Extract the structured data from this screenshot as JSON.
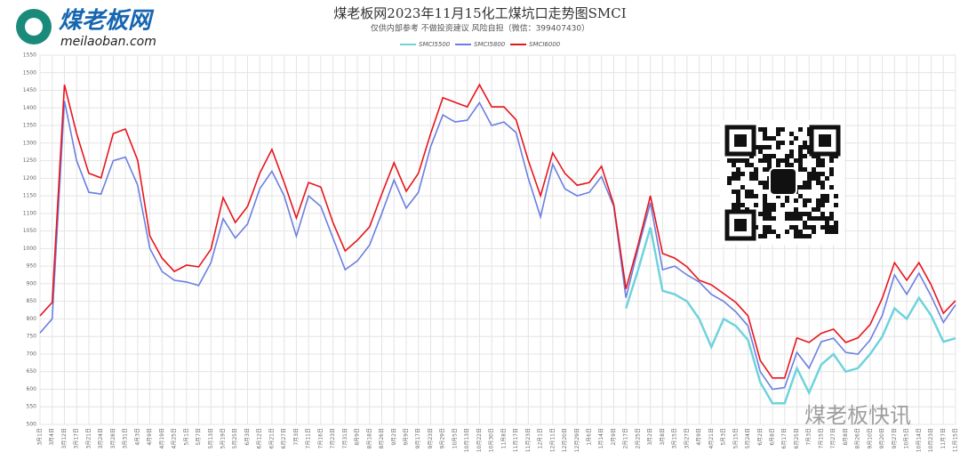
{
  "logo": {
    "name": "煤老板网",
    "site": "meilaoban.com"
  },
  "watermark": "煤老板快讯",
  "chart_data": {
    "type": "line",
    "title": "煤老板网2023年11月15化工煤坑口走势图SMCI",
    "subtitle": "仅供内部参考 不做投资建议 风险自担（微信：399407430）",
    "categories": [
      "3月1日",
      "3月4日",
      "3月12日",
      "3月17日",
      "3月21日",
      "3月24日",
      "3月28日",
      "3月31日",
      "4月3日",
      "4月9日",
      "4月19日",
      "4月25日",
      "5月1日",
      "5月7日",
      "5月13日",
      "5月19日",
      "5月25日",
      "6月3日",
      "6月12日",
      "6月21日",
      "6月27日",
      "7月3日",
      "7月11日",
      "7月16日",
      "7月23日",
      "7月31日",
      "8月9日",
      "8月18日",
      "8月26日",
      "9月2日",
      "9月9日",
      "9月17日",
      "9月23日",
      "9月29日",
      "10月5日",
      "10月13日",
      "10月22日",
      "10月30日",
      "11月8日",
      "11月17日",
      "11月23日",
      "12月1日",
      "12月11日",
      "12月20日",
      "12月29日",
      "1月6日",
      "1月14日",
      "2月9日",
      "2月17日",
      "2月25日",
      "3月2日",
      "3月8日",
      "3月15日",
      "3月27日",
      "4月9日",
      "4月21日",
      "5月3日",
      "5月15日",
      "5月24日",
      "6月2日",
      "6月8日",
      "6月17日",
      "6月25日",
      "7月3日",
      "7月15日",
      "7月27日",
      "8月8日",
      "8月26日",
      "9月10日",
      "9月20日",
      "9月27日",
      "10月5日",
      "10月14日",
      "10月23日",
      "11月7日",
      "11月15日"
    ],
    "series": [
      {
        "name": "SMCI5500",
        "color": "#6fd3dc",
        "values": [
          null,
          null,
          null,
          null,
          null,
          null,
          null,
          null,
          null,
          null,
          null,
          null,
          null,
          null,
          null,
          null,
          null,
          null,
          null,
          null,
          null,
          null,
          null,
          null,
          null,
          null,
          null,
          null,
          null,
          null,
          null,
          null,
          null,
          null,
          null,
          null,
          null,
          null,
          null,
          null,
          null,
          null,
          null,
          null,
          null,
          null,
          null,
          null,
          830,
          940,
          1060,
          880,
          870,
          850,
          800,
          720,
          800,
          780,
          740,
          620,
          560,
          560,
          660,
          590,
          670,
          700,
          650,
          660,
          700,
          750,
          830,
          800,
          860,
          810,
          735,
          745
        ]
      },
      {
        "name": "SMCI5800",
        "color": "#6b7fe0",
        "values": [
          760,
          800,
          1420,
          1250,
          1160,
          1155,
          1250,
          1260,
          1180,
          1000,
          935,
          910,
          905,
          895,
          960,
          1085,
          1030,
          1070,
          1170,
          1220,
          1150,
          1035,
          1150,
          1120,
          1030,
          940,
          965,
          1010,
          1100,
          1195,
          1115,
          1160,
          1290,
          1380,
          1360,
          1365,
          1415,
          1350,
          1360,
          1330,
          1200,
          1090,
          1240,
          1170,
          1150,
          1160,
          1205,
          1120,
          860,
          1000,
          1130,
          940,
          950,
          925,
          905,
          870,
          850,
          820,
          780,
          650,
          600,
          605,
          705,
          660,
          735,
          745,
          705,
          700,
          740,
          810,
          925,
          870,
          930,
          865,
          790,
          840
        ]
      },
      {
        "name": "SMCI6000",
        "color": "#e8141c",
        "values": [
          809,
          847,
          1466,
          1327,
          1214,
          1201,
          1327,
          1340,
          1251,
          1036,
          973,
          935,
          953,
          948,
          998,
          1145,
          1074,
          1120,
          1214,
          1282,
          1188,
          1087,
          1188,
          1175,
          1074,
          993,
          1024,
          1062,
          1155,
          1244,
          1163,
          1214,
          1327,
          1429,
          1416,
          1403,
          1466,
          1403,
          1403,
          1366,
          1251,
          1150,
          1272,
          1214,
          1180,
          1188,
          1234,
          1125,
          885,
          1011,
          1150,
          986,
          973,
          948,
          910,
          897,
          872,
          847,
          809,
          682,
          632,
          632,
          746,
          733,
          759,
          771,
          733,
          746,
          784,
          859,
          960,
          910,
          960,
          897,
          816,
          852
        ]
      }
    ],
    "ylim": [
      500,
      1550
    ],
    "yticks": [
      500,
      550,
      600,
      650,
      700,
      750,
      800,
      850,
      900,
      950,
      1000,
      1050,
      1100,
      1150,
      1200,
      1250,
      1300,
      1350,
      1400,
      1450,
      1500,
      1550
    ],
    "grid": true
  }
}
